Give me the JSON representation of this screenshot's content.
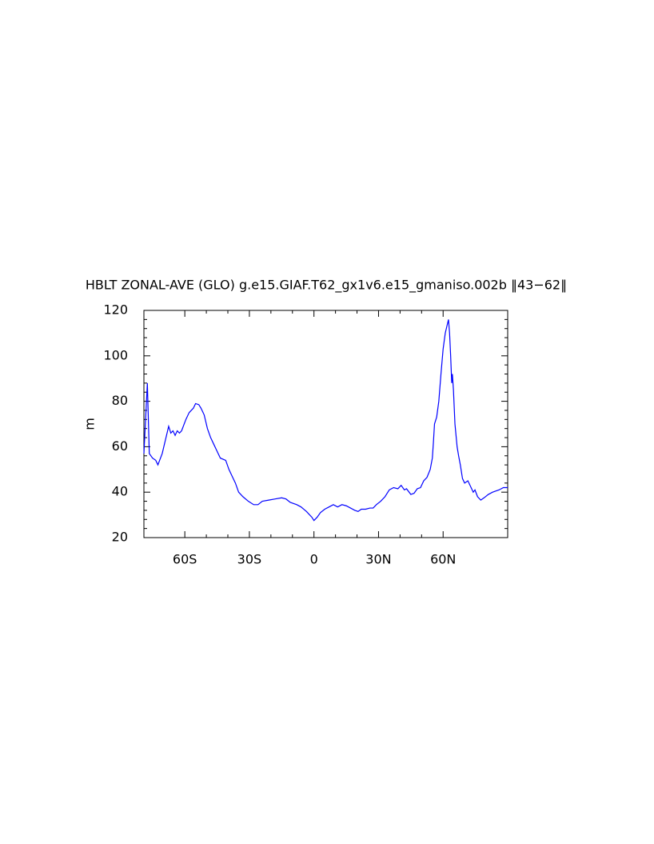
{
  "chart_data": {
    "type": "line",
    "title": "HBLT ZONAL-AVE (GLO) g.e15.GIAF.T62_gx1v6.e15_gmaniso.002b ‖43−62‖",
    "y_label": "m",
    "x": [
      -79,
      -77.4,
      -76.5,
      -75,
      -73.5,
      -72.5,
      -70.5,
      -69,
      -67.5,
      -66.5,
      -65.5,
      -64.5,
      -63.5,
      -62.5,
      -61.5,
      -59.5,
      -58,
      -57,
      -56,
      -55,
      -53.5,
      -52.5,
      -51,
      -49.5,
      -48,
      -46.5,
      -45,
      -43.5,
      -41,
      -39.5,
      -38,
      -36.5,
      -35,
      -33,
      -30.5,
      -28,
      -26,
      -24,
      -21,
      -18,
      -15,
      -13,
      -11,
      -8,
      -6,
      -3.5,
      -1,
      0,
      1.5,
      3,
      5,
      7,
      9,
      11,
      13,
      15,
      17,
      19,
      20.5,
      22,
      24,
      26,
      27.5,
      29,
      31,
      33,
      35,
      37,
      39,
      40.5,
      42,
      43,
      45,
      46.5,
      48,
      49.5,
      51,
      52.5,
      54,
      55,
      55.5,
      56,
      57,
      58,
      59,
      60,
      61,
      62,
      62.5,
      63,
      63.5,
      64,
      64.3,
      64.8,
      65.5,
      66.5,
      67.2,
      68,
      69,
      70,
      71.5,
      73,
      74,
      74.8,
      76,
      77.5,
      79,
      81,
      83,
      86,
      88,
      90
    ],
    "series": [
      {
        "name": "HBLT",
        "color": "#0000ff",
        "values": [
          57,
          88,
          57,
          55,
          54,
          52,
          57,
          63,
          69,
          66,
          67,
          65,
          67,
          66,
          67,
          72,
          75,
          76,
          77,
          79,
          78.5,
          77,
          74,
          68,
          64,
          61,
          58,
          55,
          54,
          50,
          47,
          44,
          40,
          38,
          36,
          34.5,
          34.5,
          36,
          36.5,
          37,
          37.5,
          37,
          35.5,
          34.5,
          33.5,
          31.5,
          29,
          27.5,
          29,
          31,
          32.5,
          33.5,
          34.5,
          33.5,
          34.5,
          34,
          33,
          32,
          31.5,
          32.5,
          32.5,
          33,
          33,
          34.5,
          36,
          38,
          41,
          42,
          41.5,
          43,
          41,
          41.5,
          39,
          39.5,
          41.5,
          42,
          45,
          46.5,
          50,
          55,
          62,
          70,
          73,
          80,
          92,
          103,
          110,
          114,
          116,
          110,
          100,
          88,
          92,
          85,
          70,
          60,
          56,
          52,
          46,
          44,
          45,
          42,
          40,
          41,
          38,
          36.5,
          37.5,
          39,
          40,
          41,
          42,
          42
        ]
      }
    ],
    "xlim": [
      -79,
      90
    ],
    "ylim": [
      20,
      120
    ],
    "xticks": [
      {
        "value": -60,
        "label": "60S"
      },
      {
        "value": -30,
        "label": "30S"
      },
      0,
      {
        "value": 30,
        "label": "30N"
      },
      {
        "value": 60,
        "label": "60N"
      }
    ],
    "yticks": [
      20,
      40,
      60,
      80,
      100,
      120
    ]
  }
}
